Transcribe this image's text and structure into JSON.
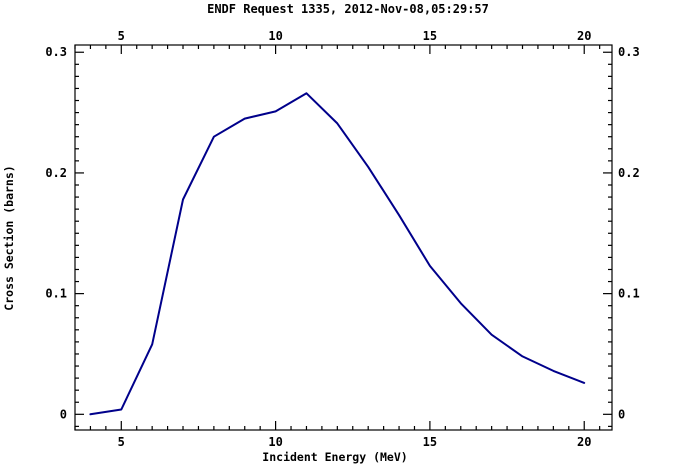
{
  "chart_data": {
    "type": "line",
    "title": "ENDF Request 1335, 2012-Nov-08,05:29:57",
    "xlabel": "Incident Energy (MeV)",
    "ylabel": "Cross Section (barns)",
    "xlim": [
      3.5,
      20.9
    ],
    "ylim": [
      -0.013,
      0.306
    ],
    "xticks": [
      5,
      10,
      15,
      20
    ],
    "yticks": [
      0,
      0.1,
      0.2,
      0.3
    ],
    "xtick_labels": [
      "5",
      "10",
      "15",
      "20"
    ],
    "ytick_labels": [
      "0",
      "0.1",
      "0.2",
      "0.3"
    ],
    "x_minor_step": 0.5,
    "y_minor_step": 0.01,
    "grid": false,
    "line_color": "#00008b",
    "series": [
      {
        "x": [
          4,
          5,
          6,
          7,
          8,
          9,
          10,
          11,
          12,
          13,
          14,
          15,
          16,
          17,
          18,
          19,
          20
        ],
        "values": [
          0.0,
          0.004,
          0.058,
          0.178,
          0.23,
          0.245,
          0.251,
          0.266,
          0.241,
          0.205,
          0.165,
          0.123,
          0.092,
          0.066,
          0.048,
          0.036,
          0.026
        ]
      }
    ]
  }
}
